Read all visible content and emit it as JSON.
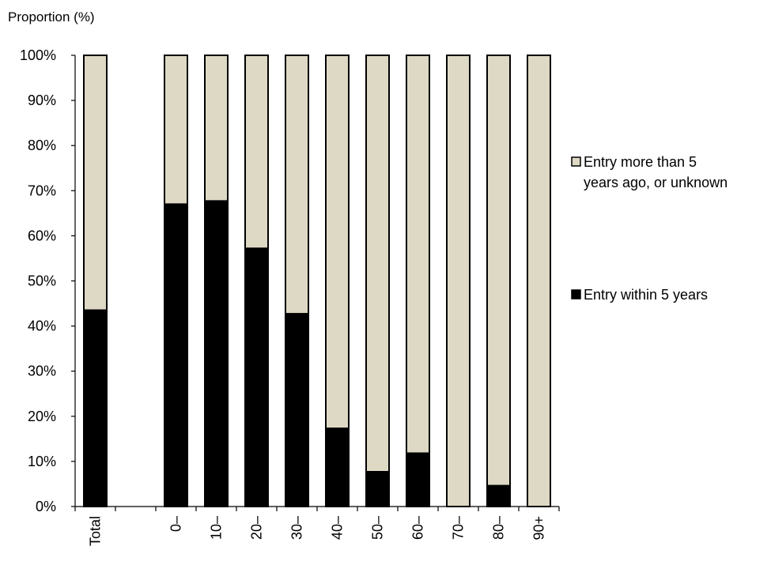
{
  "chart_data": {
    "type": "bar",
    "stacked": true,
    "ylabel": "Proportion (%)",
    "ylim": [
      0,
      100
    ],
    "yticks": [
      "0%",
      "10%",
      "20%",
      "30%",
      "40%",
      "50%",
      "60%",
      "70%",
      "80%",
      "90%",
      "100%"
    ],
    "categories": [
      "Total",
      "",
      "0–",
      "10–",
      "20–",
      "30–",
      "40–",
      "50–",
      "60–",
      "70–",
      "80–",
      "90+"
    ],
    "series": [
      {
        "name": "Entry within 5 years",
        "color": "#000000",
        "values": [
          43.5,
          null,
          67,
          67.7,
          57.2,
          42.7,
          17.3,
          7.7,
          11.8,
          0,
          4.6,
          0
        ]
      },
      {
        "name": "Entry more than 5 years ago, or unknown",
        "name_lines": [
          "Entry more than 5",
          "years ago, or unknown"
        ],
        "color": "#ddd9c4",
        "values": [
          56.5,
          null,
          33,
          32.3,
          42.8,
          57.3,
          82.7,
          92.3,
          88.2,
          100,
          95.4,
          100
        ]
      }
    ],
    "legend_position": "right",
    "grid": false
  }
}
